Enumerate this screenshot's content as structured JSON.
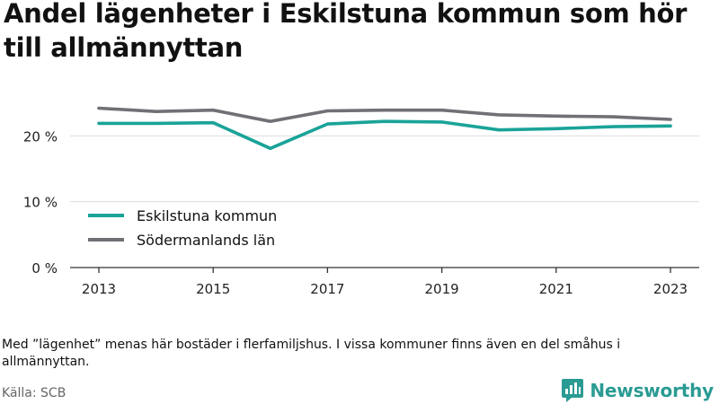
{
  "title": "Andel lägenheter i Eskilstuna kommun som hör till allmännyttan",
  "note": "Med ”lägenhet” menas här bostäder i flerfamiljshus. I vissa kommuner finns även en del småhus i allmännyttan.",
  "source": "Källa: SCB",
  "brand": {
    "name": "Newsworthy",
    "icon": "newsworthy-logo-icon",
    "color": "#2a9b93"
  },
  "chart_data": {
    "type": "line",
    "title": "Andel lägenheter i Eskilstuna kommun som hör till allmännyttan",
    "xlabel": "",
    "ylabel": "",
    "x": [
      2013,
      2014,
      2015,
      2016,
      2017,
      2018,
      2019,
      2020,
      2021,
      2022,
      2023
    ],
    "x_ticks": [
      "2013",
      "2015",
      "2017",
      "2019",
      "2021",
      "2023"
    ],
    "y_ticks": [
      0,
      10,
      20
    ],
    "y_tick_labels": [
      "0 %",
      "10 %",
      "20 %"
    ],
    "ylim": [
      0,
      27
    ],
    "grid": true,
    "legend_position": "bottom-left",
    "series": [
      {
        "name": "Eskilstuna kommun",
        "color": "#1aa398",
        "values": [
          21.9,
          21.9,
          22.0,
          18.1,
          21.8,
          22.2,
          22.1,
          20.9,
          21.1,
          21.4,
          21.5
        ]
      },
      {
        "name": "Södermanlands län",
        "color": "#707075",
        "values": [
          24.2,
          23.7,
          23.9,
          22.2,
          23.8,
          23.9,
          23.9,
          23.2,
          23.0,
          22.9,
          22.5
        ]
      }
    ]
  }
}
